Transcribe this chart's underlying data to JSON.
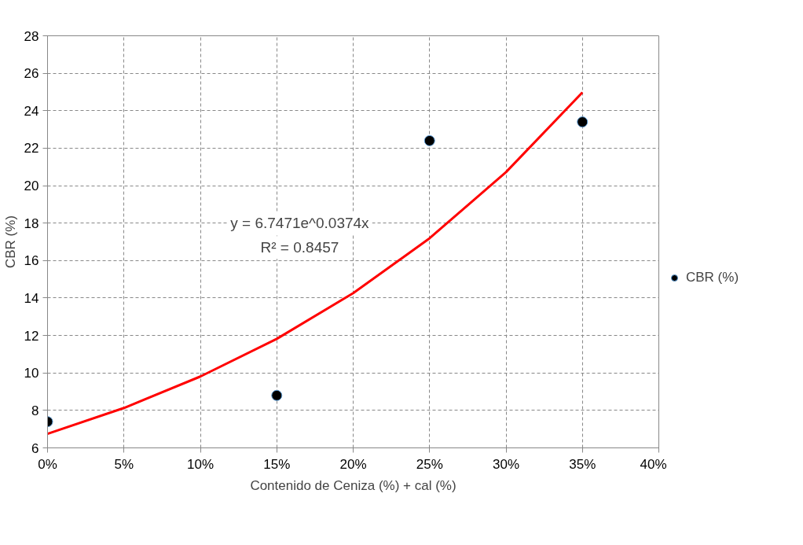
{
  "chart_data": {
    "type": "scatter",
    "xlabel": "Contenido de Ceniza (%) + cal (%)",
    "ylabel": "CBR (%)",
    "x": [
      0,
      15,
      25,
      35
    ],
    "series": [
      {
        "name": "CBR (%)",
        "color": "#000000",
        "marker": "circle",
        "values": [
          7.4,
          8.8,
          22.4,
          23.4
        ]
      },
      {
        "type": "line",
        "color": "#ff0000",
        "line_style": "solid",
        "marker": "none",
        "x": [
          0,
          5,
          10,
          15,
          20,
          25,
          30,
          35
        ],
        "values": [
          6.75,
          8.13,
          9.81,
          11.82,
          14.26,
          17.19,
          20.72,
          24.98
        ]
      }
    ],
    "xlim": [
      0,
      40
    ],
    "ylim": [
      6,
      28
    ],
    "xticks": [
      {
        "value": 0,
        "label": "0%"
      },
      {
        "value": 5,
        "label": "5%"
      },
      {
        "value": 10,
        "label": "10%"
      },
      {
        "value": 15,
        "label": "15%"
      },
      {
        "value": 20,
        "label": "20%"
      },
      {
        "value": 25,
        "label": "25%"
      },
      {
        "value": 30,
        "label": "30%"
      },
      {
        "value": 35,
        "label": "35%"
      },
      {
        "value": 40,
        "label": "40%"
      }
    ],
    "yticks": [
      6,
      8,
      10,
      12,
      14,
      16,
      18,
      20,
      22,
      24,
      26,
      28
    ],
    "annotations": [
      "y = 6.7471e^0.0374x",
      "R² = 0.8457"
    ],
    "grid": true,
    "legend": "right"
  }
}
